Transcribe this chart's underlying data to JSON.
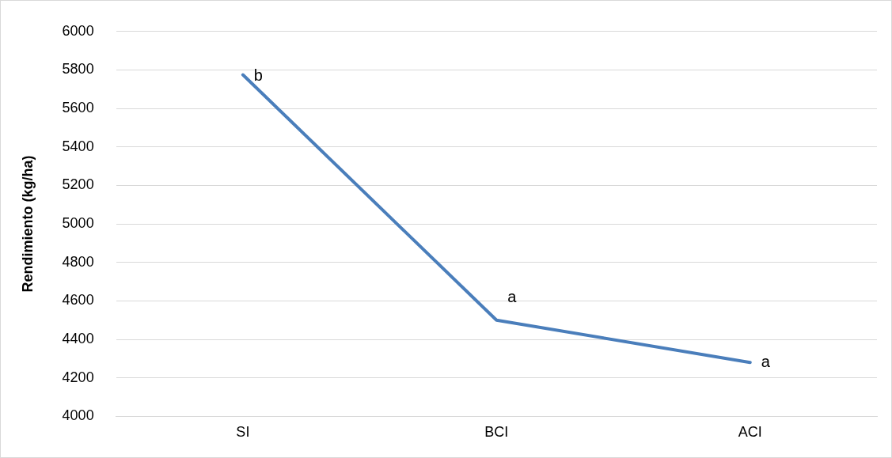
{
  "chart_data": {
    "type": "line",
    "ylabel": "Rendimiento (kg/ha)",
    "categories": [
      "SI",
      "BCI",
      "ACI"
    ],
    "series": [
      {
        "color": "#4a7ebb",
        "values": [
          5775,
          4500,
          4280
        ]
      }
    ],
    "ylim": [
      4000,
      6000
    ],
    "yticks": [
      4000,
      4200,
      4400,
      4600,
      4800,
      5000,
      5200,
      5400,
      5600,
      5800,
      6000
    ],
    "grid": "y",
    "legend": false,
    "marker": "none",
    "line_style": "solid",
    "annotations": [
      {
        "text": "b",
        "x": "SI",
        "y": 5775
      },
      {
        "text": "a",
        "x": "BCI",
        "y": 4500
      },
      {
        "text": "a",
        "x": "ACI",
        "y": 4280
      }
    ]
  }
}
